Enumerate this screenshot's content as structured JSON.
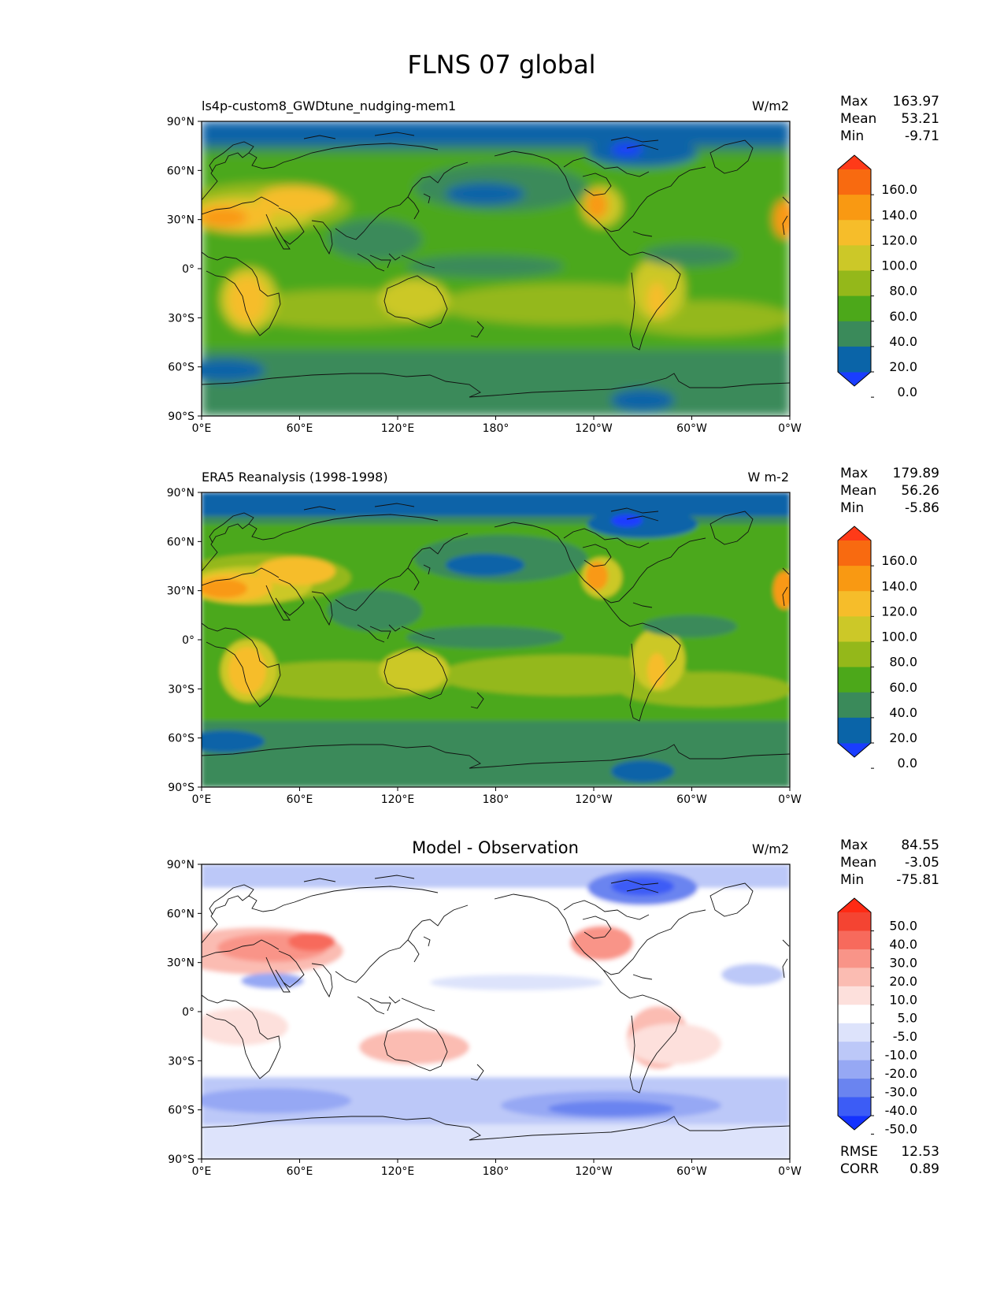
{
  "figure": {
    "title": "FLNS 07 global"
  },
  "axes": {
    "lat_ticks": [
      "90°N",
      "60°N",
      "30°N",
      "0°",
      "30°S",
      "60°S",
      "90°S"
    ],
    "lon_ticks": [
      "0°E",
      "60°E",
      "120°E",
      "180°",
      "120°W",
      "60°W",
      "0°W"
    ]
  },
  "panels": [
    {
      "title": "ls4p-custom8_GWDtune_nudging-mem1",
      "units": "W/m2",
      "stats": [
        {
          "label": "Max",
          "value": "163.97"
        },
        {
          "label": "Mean",
          "value": "53.21"
        },
        {
          "label": "Min",
          "value": "-9.71"
        }
      ],
      "colorbar": {
        "labels": [
          "160.0",
          "140.0",
          "120.0",
          "100.0",
          "80.0",
          "60.0",
          "40.0",
          "20.0",
          "0.0"
        ],
        "colors": [
          "#1a3dff",
          "#0a64a8",
          "#3a8a5a",
          "#4ca81a",
          "#94b81a",
          "#ccc828",
          "#f6bd2a",
          "#f99912",
          "#f86a10",
          "#ff3a18"
        ]
      }
    },
    {
      "title": "ERA5 Reanalysis (1998-1998)",
      "units": "W m-2",
      "stats": [
        {
          "label": "Max",
          "value": "179.89"
        },
        {
          "label": "Mean",
          "value": "56.26"
        },
        {
          "label": "Min",
          "value": "-5.86"
        }
      ],
      "colorbar": {
        "labels": [
          "160.0",
          "140.0",
          "120.0",
          "100.0",
          "80.0",
          "60.0",
          "40.0",
          "20.0",
          "0.0"
        ],
        "colors": [
          "#1a3dff",
          "#0a64a8",
          "#3a8a5a",
          "#4ca81a",
          "#94b81a",
          "#ccc828",
          "#f6bd2a",
          "#f99912",
          "#f86a10",
          "#ff3a18"
        ]
      }
    },
    {
      "title": "Model - Observation",
      "units": "W/m2",
      "stats": [
        {
          "label": "Max",
          "value": "84.55"
        },
        {
          "label": "Mean",
          "value": "-3.05"
        },
        {
          "label": "Min",
          "value": "-75.81"
        }
      ],
      "extra_stats": [
        {
          "label": "RMSE",
          "value": "12.53"
        },
        {
          "label": "CORR",
          "value": "0.89"
        }
      ],
      "colorbar": {
        "labels": [
          "50.0",
          "40.0",
          "30.0",
          "20.0",
          "10.0",
          "5.0",
          "-5.0",
          "-10.0",
          "-20.0",
          "-30.0",
          "-40.0",
          "-50.0"
        ],
        "colors": [
          "#1432ff",
          "#3c5cf6",
          "#6a84f0",
          "#96a8f4",
          "#bcc8f8",
          "#dde3fb",
          "#ffffff",
          "#fde0dc",
          "#fbbcb2",
          "#f99488",
          "#f76a5c",
          "#f44432",
          "#ff2a14"
        ]
      }
    }
  ]
}
